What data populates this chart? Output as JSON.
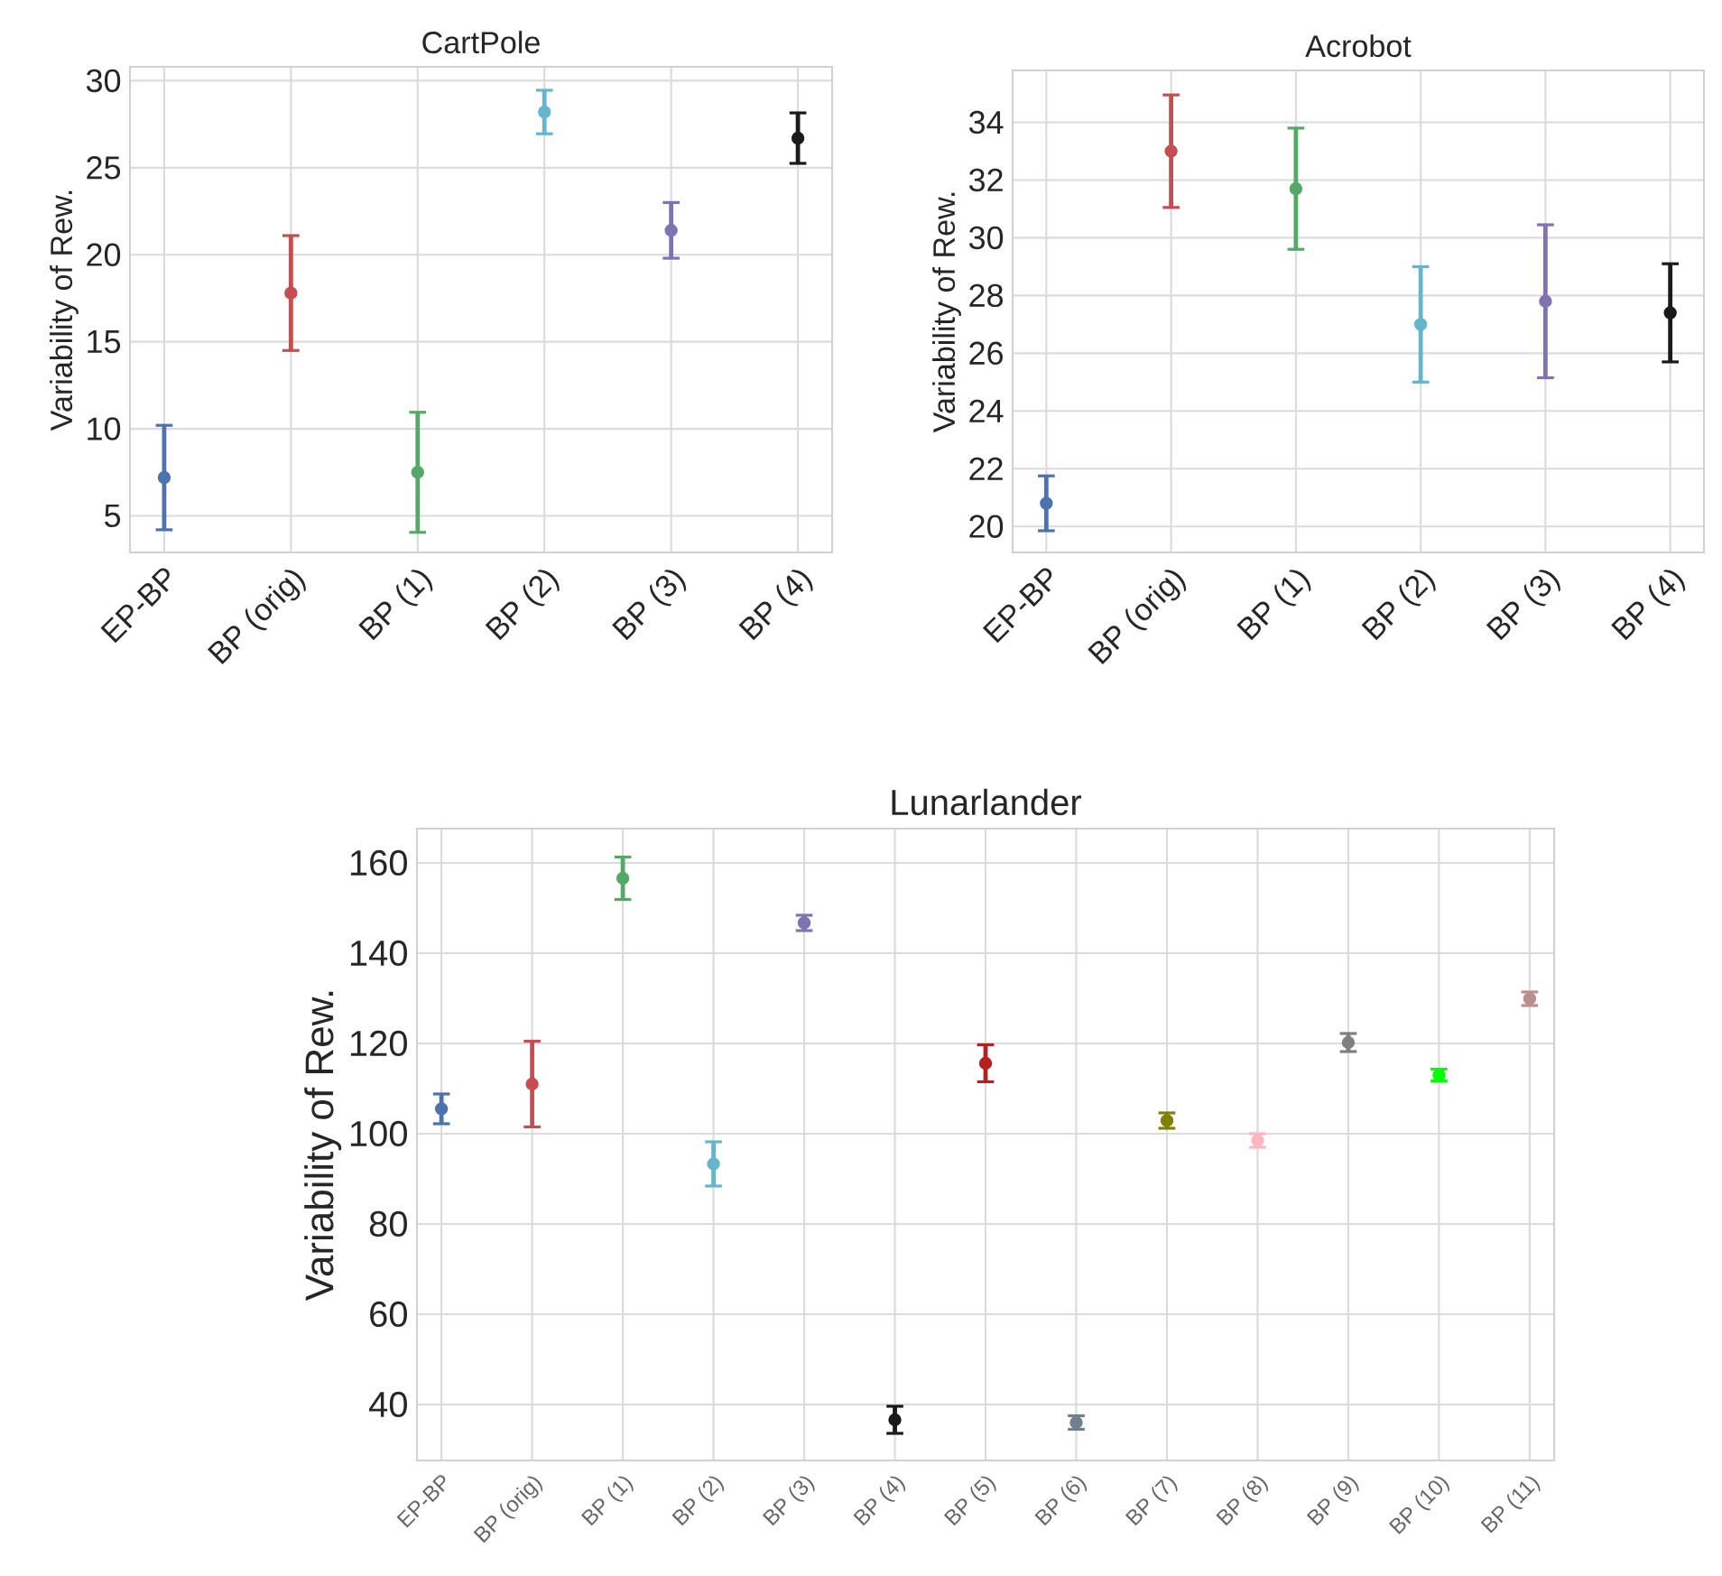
{
  "chart_data": [
    {
      "type": "scatter",
      "title": "CartPole",
      "ylabel": "Variability of Rew.",
      "categories": [
        "EP-BP",
        "BP (orig)",
        "BP (1)",
        "BP (2)",
        "BP (3)",
        "BP (4)"
      ],
      "series": [
        {
          "values": [
            7.2,
            17.8,
            7.5,
            28.2,
            21.4,
            26.7
          ],
          "errors": [
            3.0,
            3.3,
            3.45,
            1.25,
            1.6,
            1.45
          ],
          "colors": [
            "#4c72b0",
            "#c44e52",
            "#55a868",
            "#64b5cd",
            "#8172b2",
            "#1a1a1a"
          ]
        }
      ],
      "ylim": [
        2.9,
        30.8
      ],
      "yticks": [
        5,
        10,
        15,
        20,
        25,
        30
      ],
      "grid": true,
      "marker": "circle"
    },
    {
      "type": "scatter",
      "title": "Acrobot",
      "ylabel": "Variability of Rew.",
      "categories": [
        "EP-BP",
        "BP (orig)",
        "BP (1)",
        "BP (2)",
        "BP (3)",
        "BP (4)"
      ],
      "series": [
        {
          "values": [
            20.8,
            33.0,
            31.7,
            27.0,
            27.8,
            27.4
          ],
          "errors": [
            0.95,
            1.95,
            2.1,
            2.0,
            2.65,
            1.7
          ],
          "colors": [
            "#4c72b0",
            "#c44e52",
            "#55a868",
            "#64b5cd",
            "#8172b2",
            "#1a1a1a"
          ]
        }
      ],
      "ylim": [
        19.1,
        35.8
      ],
      "yticks": [
        20,
        22,
        24,
        26,
        28,
        30,
        32,
        34
      ],
      "grid": true,
      "marker": "circle"
    },
    {
      "type": "scatter",
      "title": "Lunarlander",
      "ylabel": "Variability of Rew.",
      "categories": [
        "EP-BP",
        "BP (orig)",
        "BP (1)",
        "BP (2)",
        "BP (3)",
        "BP (4)",
        "BP (5)",
        "BP (6)",
        "BP (7)",
        "BP (8)",
        "BP (9)",
        "BP (10)",
        "BP (11)"
      ],
      "series": [
        {
          "values": [
            105.5,
            111.0,
            156.6,
            93.3,
            146.7,
            36.6,
            115.6,
            36.0,
            102.9,
            98.5,
            120.2,
            113.0,
            129.9
          ],
          "errors": [
            3.3,
            9.5,
            4.7,
            4.9,
            1.7,
            3.0,
            4.1,
            1.5,
            1.7,
            1.5,
            2.0,
            1.3,
            1.5
          ],
          "colors": [
            "#4c72b0",
            "#c44e52",
            "#55a868",
            "#64b5cd",
            "#8172b2",
            "#1a1a1a",
            "#b22222",
            "#708090",
            "#808000",
            "#ffb6c1",
            "#808080",
            "#00ff00",
            "#bc8f8f"
          ]
        }
      ],
      "ylim": [
        27.6,
        167.6
      ],
      "yticks": [
        40,
        60,
        80,
        100,
        120,
        140,
        160
      ],
      "grid": true,
      "marker": "circle"
    }
  ]
}
